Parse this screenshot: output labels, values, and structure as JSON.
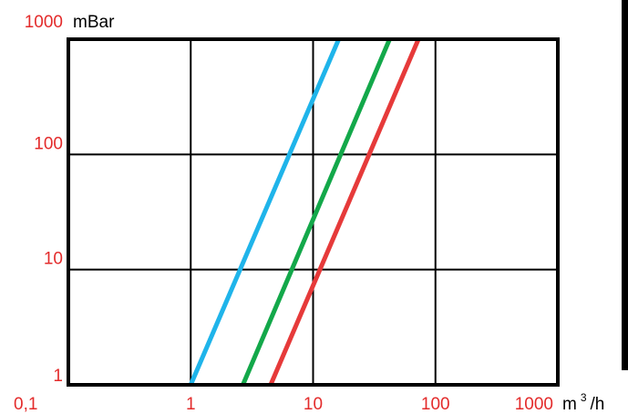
{
  "chart_data": {
    "type": "line",
    "x_scale": "log",
    "y_scale": "log",
    "xlim": [
      0.1,
      1000
    ],
    "ylim": [
      1,
      1000
    ],
    "x_ticks": [
      0.1,
      1,
      10,
      100,
      1000
    ],
    "y_ticks": [
      1,
      10,
      100,
      1000
    ],
    "x_tick_labels": [
      "0,1",
      "1",
      "10",
      "100",
      "1000"
    ],
    "y_tick_labels": [
      "1",
      "10",
      "100",
      "1000"
    ],
    "ylabel": "mBar",
    "xlabel_main": "m",
    "xlabel_sup": "3",
    "xlabel_tail": "/h",
    "grid": true,
    "series": [
      {
        "color": "#1fb4ea",
        "points": [
          [
            1.0,
            1
          ],
          [
            16.2,
            1000
          ]
        ]
      },
      {
        "color": "#13a84a",
        "points": [
          [
            2.67,
            1
          ],
          [
            42.2,
            1000
          ]
        ]
      },
      {
        "color": "#e63a3a",
        "points": [
          [
            4.5,
            1
          ],
          [
            72.6,
            1000
          ]
        ]
      }
    ]
  },
  "colors": {
    "tick_label": "#e32b2b",
    "frame": "#000000"
  }
}
